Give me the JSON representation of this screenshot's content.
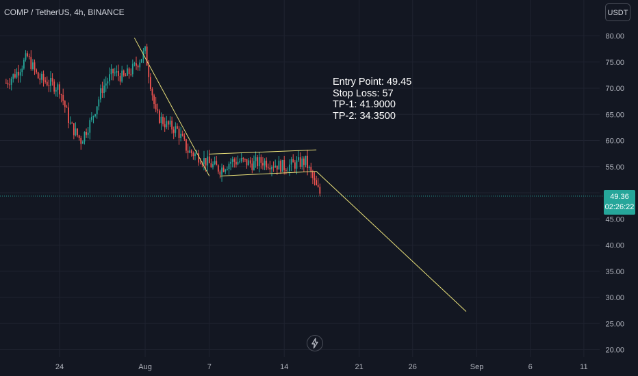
{
  "header": {
    "title": "COMP / TetherUS, 4h, BINANCE"
  },
  "toolbar": {
    "currency_label": "USDT"
  },
  "annotation": {
    "lines": [
      "Entry Point: 49.45",
      "Stop Loss: 57",
      "TP-1: 41.9000",
      "TP-2: 34.3500"
    ]
  },
  "price_label": {
    "price": "49.36",
    "countdown": "02:26:22"
  },
  "colors": {
    "background": "#131722",
    "grid": "#1f2330",
    "up": "#26a69a",
    "down": "#ef5350",
    "drawing": "#ebe27a",
    "axis_text": "#b2b5be",
    "price_line": "#26a69a"
  },
  "icons": {
    "bottom": "lightning-icon"
  },
  "chart_data": {
    "type": "candlestick",
    "y_axis": {
      "min": 20,
      "max": 80,
      "ticks": [
        20,
        25,
        30,
        35,
        40,
        45,
        50,
        55,
        60,
        65,
        70,
        75,
        80
      ],
      "tick_labels": [
        "20.00",
        "25.00",
        "30.00",
        "35.00",
        "40.00",
        "45.00",
        "50.00",
        "55.00",
        "60.00",
        "65.00",
        "70.00",
        "75.00",
        "80.00"
      ],
      "position": "right"
    },
    "x_axis": {
      "tick_labels": [
        "24",
        "Aug",
        "7",
        "14",
        "21",
        "26",
        "Sep",
        "6",
        "11"
      ],
      "ticks": [
        "2023-07-24",
        "2023-08-01",
        "2023-08-07",
        "2023-08-14",
        "2023-08-21",
        "2023-08-26",
        "2023-09-01",
        "2023-09-06",
        "2023-09-11"
      ]
    },
    "last_price": 49.36,
    "grid": true,
    "price_path": [
      [
        "2023-07-19",
        71
      ],
      [
        "2023-07-20",
        73
      ],
      [
        "2023-07-21",
        76
      ],
      [
        "2023-07-22",
        72
      ],
      [
        "2023-07-23",
        71
      ],
      [
        "2023-07-24",
        70
      ],
      [
        "2023-07-25",
        63
      ],
      [
        "2023-07-26",
        60
      ],
      [
        "2023-07-27",
        64
      ],
      [
        "2023-07-28",
        70
      ],
      [
        "2023-07-29",
        73
      ],
      [
        "2023-07-30",
        72
      ],
      [
        "2023-07-31",
        74
      ],
      [
        "2023-08-01",
        77
      ],
      [
        "2023-08-02",
        65
      ],
      [
        "2023-08-03",
        63
      ],
      [
        "2023-08-04",
        62
      ],
      [
        "2023-08-05",
        58
      ],
      [
        "2023-08-06",
        57
      ],
      [
        "2023-08-07",
        55.5
      ],
      [
        "2023-08-08",
        54.5
      ],
      [
        "2023-08-09",
        56
      ],
      [
        "2023-08-10",
        56
      ],
      [
        "2023-08-11",
        55.5
      ],
      [
        "2023-08-12",
        56
      ],
      [
        "2023-08-13",
        55.5
      ],
      [
        "2023-08-14",
        55
      ],
      [
        "2023-08-15",
        55.5
      ],
      [
        "2023-08-16",
        56
      ],
      [
        "2023-08-17",
        51
      ],
      [
        "2023-08-17T12",
        49.36
      ]
    ],
    "drawings": [
      {
        "type": "trend-line",
        "from": [
          "2023-07-31",
          79.6
        ],
        "to": [
          "2023-08-07",
          53.2
        ]
      },
      {
        "type": "channel-upper",
        "from": [
          "2023-08-07",
          57.4
        ],
        "to": [
          "2023-08-17",
          58.2
        ]
      },
      {
        "type": "channel-lower",
        "from": [
          "2023-08-08",
          53.2
        ],
        "to": [
          "2023-08-17",
          54.1
        ]
      },
      {
        "type": "projection-line",
        "from": [
          "2023-08-17",
          54.1
        ],
        "to": [
          "2023-08-31",
          27.3
        ]
      }
    ]
  }
}
